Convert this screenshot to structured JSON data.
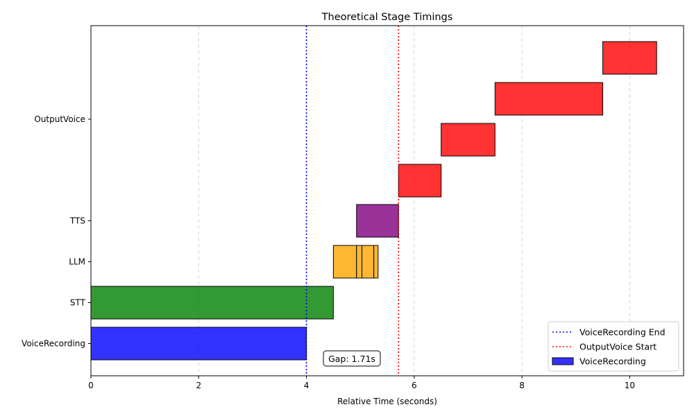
{
  "chart_data": {
    "type": "gantt",
    "title": "Theoretical Stage Timings",
    "xlabel": "Relative Time (seconds)",
    "ylabel": "",
    "xlim": [
      0,
      11
    ],
    "xticks": [
      0,
      2,
      4,
      6,
      8,
      10
    ],
    "grid": "x-dashed",
    "categories": [
      "VoiceRecording",
      "STT",
      "LLM",
      "TTS",
      "OutputVoice"
    ],
    "bars": [
      {
        "stage": "VoiceRecording",
        "start": 0,
        "end": 4.0,
        "color": "#0000ff"
      },
      {
        "stage": "STT",
        "start": 0,
        "end": 4.5,
        "color": "#008000"
      },
      {
        "stage": "LLM",
        "start": 4.5,
        "end": 4.93,
        "color": "#ffa500"
      },
      {
        "stage": "LLM",
        "start": 4.93,
        "end": 5.03,
        "color": "#ffa500"
      },
      {
        "stage": "LLM",
        "start": 5.03,
        "end": 5.25,
        "color": "#ffa500"
      },
      {
        "stage": "LLM",
        "start": 5.25,
        "end": 5.33,
        "color": "#ffa500"
      },
      {
        "stage": "TTS",
        "start": 4.93,
        "end": 5.71,
        "color": "#800080"
      },
      {
        "stage": "OutputVoice",
        "row_offset": 0,
        "start": 5.71,
        "end": 6.5,
        "color": "#ff0000"
      },
      {
        "stage": "OutputVoice",
        "row_offset": 1,
        "start": 6.5,
        "end": 7.5,
        "color": "#ff0000"
      },
      {
        "stage": "OutputVoice",
        "row_offset": 2,
        "start": 7.5,
        "end": 9.5,
        "color": "#ff0000"
      },
      {
        "stage": "OutputVoice",
        "row_offset": 3,
        "start": 9.5,
        "end": 10.5,
        "color": "#ff0000"
      }
    ],
    "vlines": [
      {
        "x": 4.0,
        "color": "#0000ff",
        "label": "VoiceRecording End"
      },
      {
        "x": 5.71,
        "color": "#ff0000",
        "label": "OutputVoice Start"
      }
    ],
    "annotation": {
      "text": "Gap: 1.71s",
      "x": 4.85
    },
    "legend": {
      "placement": "lower-right",
      "entries": [
        {
          "label": "VoiceRecording End",
          "kind": "dotted-line",
          "color": "#0000ff"
        },
        {
          "label": "OutputVoice Start",
          "kind": "dotted-line",
          "color": "#ff0000"
        },
        {
          "label": "VoiceRecording",
          "kind": "patch",
          "color": "#0000ff"
        }
      ]
    }
  }
}
